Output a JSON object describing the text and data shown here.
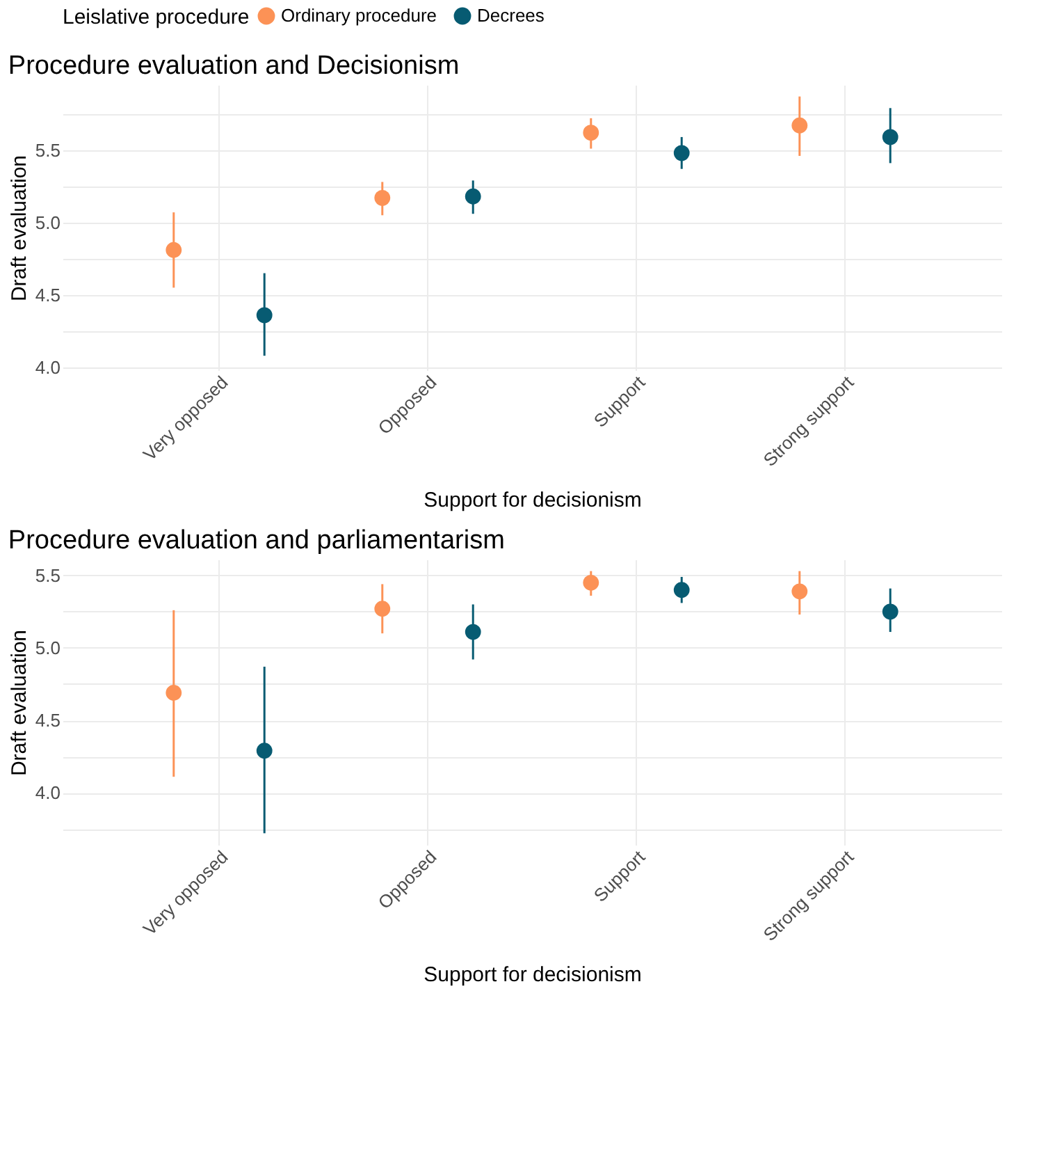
{
  "chart_data": [
    {
      "type": "scatter",
      "title": "Procedure evaluation and Decisionism",
      "xlabel": "Support for decisionism",
      "ylabel": "Draft evaluation",
      "legend_title": "Leislative procedure",
      "legend": "top",
      "grid": true,
      "marker": "circle",
      "categories": [
        "Very opposed",
        "Opposed",
        "Support",
        "Strong support"
      ],
      "ylim": [
        3.98,
        5.95
      ],
      "yticks": [
        {
          "value": 4.0,
          "label": "4.0"
        },
        {
          "value": 4.25,
          "label": null
        },
        {
          "value": 4.5,
          "label": "4.5"
        },
        {
          "value": 4.75,
          "label": null
        },
        {
          "value": 5.0,
          "label": "5.0"
        },
        {
          "value": 5.25,
          "label": null
        },
        {
          "value": 5.5,
          "label": "5.5"
        },
        {
          "value": 5.75,
          "label": null
        }
      ],
      "series": [
        {
          "name": "Ordinary procedure",
          "color": "#fc9256",
          "values": [
            4.81,
            5.17,
            5.62,
            5.67
          ],
          "errors": [
            [
              4.55,
              5.07
            ],
            [
              5.05,
              5.28
            ],
            [
              5.51,
              5.72
            ],
            [
              5.46,
              5.87
            ]
          ]
        },
        {
          "name": "Decrees",
          "color": "#075b72",
          "values": [
            4.36,
            5.18,
            5.48,
            5.59
          ],
          "errors": [
            [
              4.08,
              4.65
            ],
            [
              5.06,
              5.29
            ],
            [
              5.37,
              5.59
            ],
            [
              5.41,
              5.79
            ]
          ]
        }
      ]
    },
    {
      "type": "scatter",
      "title": "Procedure evaluation and parliamentarism",
      "xlabel": "Support for decisionism",
      "ylabel": "Draft evaluation",
      "legend": false,
      "grid": true,
      "marker": "circle",
      "categories": [
        "Very opposed",
        "Opposed",
        "Support",
        "Strong support"
      ],
      "ylim": [
        3.64,
        5.61
      ],
      "yticks": [
        {
          "value": 3.75,
          "label": null
        },
        {
          "value": 4.0,
          "label": "4.0"
        },
        {
          "value": 4.25,
          "label": null
        },
        {
          "value": 4.5,
          "label": "4.5"
        },
        {
          "value": 4.75,
          "label": null
        },
        {
          "value": 5.0,
          "label": "5.0"
        },
        {
          "value": 5.25,
          "label": null
        },
        {
          "value": 5.5,
          "label": "5.5"
        }
      ],
      "series": [
        {
          "name": "Ordinary procedure",
          "color": "#fc9256",
          "values": [
            4.69,
            5.27,
            5.45,
            5.39
          ],
          "errors": [
            [
              4.11,
              5.26
            ],
            [
              5.1,
              5.44
            ],
            [
              5.36,
              5.53
            ],
            [
              5.23,
              5.53
            ]
          ]
        },
        {
          "name": "Decrees",
          "color": "#075b72",
          "values": [
            4.29,
            5.11,
            5.4,
            5.25
          ],
          "errors": [
            [
              3.72,
              4.87
            ],
            [
              4.92,
              5.3
            ],
            [
              5.31,
              5.49
            ],
            [
              5.11,
              5.41
            ]
          ]
        }
      ]
    }
  ]
}
